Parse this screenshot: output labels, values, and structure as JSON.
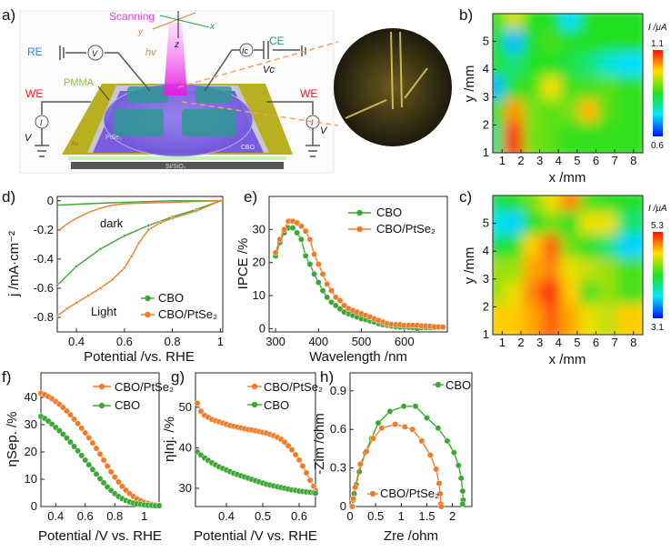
{
  "panels": {
    "a": "a)",
    "b": "b)",
    "c": "c)",
    "d": "d)",
    "e": "e)",
    "f": "f)",
    "g": "g)",
    "h": "h)"
  },
  "schematic": {
    "scanning": "Scanning",
    "axis_x": "x",
    "axis_y": "y",
    "axis_z": "z",
    "hv": "hv",
    "re": "RE",
    "v_meter": "V",
    "we_left": "WE",
    "we_right": "WE",
    "pmma": "PMMA",
    "i_left": "I",
    "v_left": "V",
    "i_right": "I",
    "v_right": "V",
    "ic": "Ic",
    "ce": "CE",
    "vc": "Vc",
    "ptse2": "PtSe₂",
    "au": "Au",
    "cbo": "CBO",
    "substrate": "Si/SiO₂",
    "colors": {
      "scanning": "#e040e0",
      "re": "#2a8ad8",
      "we": "#e02020",
      "ce": "#20a060",
      "pmma": "#90c040",
      "hv": "#e08030",
      "au": "#b8b020",
      "cbo_film": "#7b5ce0"
    }
  },
  "colors": {
    "cbo": "#3aa832",
    "ptse2": "#f07c28"
  },
  "chart_data": [
    {
      "id": "b",
      "type": "heatmap",
      "xlabel": "x /mm",
      "ylabel": "y /mm",
      "xticks": [
        1,
        2,
        3,
        4,
        5,
        6,
        7,
        8
      ],
      "yticks": [
        1,
        2,
        3,
        4,
        5
      ],
      "xlim": [
        0.5,
        8.5
      ],
      "ylim": [
        1,
        6
      ],
      "colorbar": {
        "label": "I /μA",
        "max": "1.1",
        "min": "0.6",
        "range": [
          0.6,
          1.1
        ]
      },
      "x": [
        1,
        2,
        3,
        4,
        5,
        6,
        7,
        8
      ],
      "y": [
        5.6,
        4.8,
        4,
        3,
        2,
        1.2
      ],
      "values": [
        [
          0.85,
          0.95,
          0.85,
          0.85,
          0.72,
          0.85,
          0.85,
          0.85
        ],
        [
          0.85,
          0.7,
          0.85,
          0.87,
          0.85,
          0.85,
          0.85,
          0.85
        ],
        [
          0.85,
          0.8,
          0.85,
          0.85,
          0.83,
          0.8,
          0.75,
          0.72
        ],
        [
          0.7,
          0.85,
          0.87,
          0.97,
          0.87,
          0.87,
          0.88,
          0.86
        ],
        [
          0.85,
          1.02,
          0.9,
          0.88,
          0.9,
          1.0,
          0.88,
          0.86
        ],
        [
          0.8,
          1.1,
          0.9,
          0.88,
          0.86,
          0.86,
          0.86,
          0.86
        ]
      ]
    },
    {
      "id": "c",
      "type": "heatmap",
      "xlabel": "x /mm",
      "ylabel": "y /mm",
      "xticks": [
        1,
        2,
        3,
        4,
        5,
        6,
        7,
        8
      ],
      "yticks": [
        1,
        2,
        3,
        4,
        5
      ],
      "xlim": [
        0.5,
        8.5
      ],
      "ylim": [
        1,
        6
      ],
      "colorbar": {
        "label": "I /μA",
        "max": "5.3",
        "min": "3.1",
        "range": [
          3.1,
          5.3
        ]
      },
      "x": [
        1,
        2,
        3,
        4,
        5,
        6,
        7,
        8
      ],
      "y": [
        5.6,
        4.8,
        4,
        3,
        2,
        1.2
      ],
      "values": [
        [
          4.1,
          4.2,
          4.4,
          4.7,
          5.0,
          4.3,
          4.2,
          4.2
        ],
        [
          3.7,
          3.6,
          4.2,
          4.4,
          4.2,
          4.7,
          4.7,
          4.0
        ],
        [
          4.1,
          4.2,
          4.8,
          5.1,
          4.4,
          4.2,
          4.0,
          3.6
        ],
        [
          4.5,
          4.5,
          4.9,
          5.0,
          4.7,
          4.6,
          4.5,
          4.3
        ],
        [
          4.5,
          4.7,
          5.0,
          5.3,
          4.8,
          4.3,
          4.5,
          4.3
        ],
        [
          4.8,
          4.8,
          4.9,
          5.1,
          4.9,
          4.7,
          4.6,
          4.8
        ]
      ]
    },
    {
      "id": "d",
      "type": "line",
      "xlabel": "Potential /vs. RHE",
      "ylabel": "j /mA·cm⁻²",
      "xlim": [
        0.32,
        1.01
      ],
      "ylim": [
        -0.9,
        0.03
      ],
      "xticks": [
        0.4,
        0.6,
        0.8,
        1
      ],
      "yticks": [
        0,
        -0.2,
        -0.4,
        -0.6,
        -0.8
      ],
      "annotations": {
        "dark": "dark",
        "light": "Light"
      },
      "series": [
        {
          "name": "CBO",
          "color": "cbo",
          "condition": "light",
          "x": [
            0.32,
            0.4,
            0.5,
            0.6,
            0.7,
            0.8,
            0.9,
            1.0
          ],
          "y": [
            -0.58,
            -0.45,
            -0.33,
            -0.24,
            -0.17,
            -0.11,
            -0.06,
            0.0
          ]
        },
        {
          "name": "CBO/PtSe₂",
          "color": "ptse2",
          "condition": "light",
          "x": [
            0.32,
            0.36,
            0.4,
            0.45,
            0.5,
            0.55,
            0.6,
            0.63,
            0.66,
            0.7,
            0.75,
            0.8,
            0.9,
            1.0
          ],
          "y": [
            -0.79,
            -0.74,
            -0.7,
            -0.65,
            -0.6,
            -0.54,
            -0.46,
            -0.38,
            -0.29,
            -0.2,
            -0.15,
            -0.12,
            -0.07,
            0.0
          ]
        },
        {
          "name": "CBO",
          "color": "cbo",
          "condition": "dark",
          "x": [
            0.32,
            0.45,
            0.6,
            0.8,
            1.0
          ],
          "y": [
            -0.03,
            -0.02,
            -0.01,
            0,
            0
          ]
        },
        {
          "name": "CBO/PtSe₂",
          "color": "ptse2",
          "condition": "dark",
          "x": [
            0.32,
            0.36,
            0.4,
            0.45,
            0.5,
            0.55,
            0.6,
            0.8,
            1.0
          ],
          "y": [
            -0.21,
            -0.16,
            -0.12,
            -0.08,
            -0.05,
            -0.03,
            -0.02,
            -0.01,
            0
          ]
        }
      ],
      "legend": [
        "CBO",
        "CBO/PtSe₂"
      ]
    },
    {
      "id": "e",
      "type": "line",
      "xlabel": "Wavelength /nm",
      "ylabel": "IPCE /%",
      "xlim": [
        285,
        700
      ],
      "ylim": [
        -1,
        40
      ],
      "xticks": [
        300,
        400,
        500,
        600
      ],
      "yticks": [
        0,
        10,
        20,
        30
      ],
      "x": [
        300,
        310,
        320,
        330,
        340,
        350,
        360,
        370,
        380,
        390,
        400,
        410,
        420,
        430,
        440,
        450,
        460,
        470,
        480,
        490,
        500,
        510,
        520,
        530,
        540,
        550,
        560,
        570,
        580,
        590,
        600,
        610,
        620,
        630,
        640,
        650,
        660,
        670,
        680,
        690
      ],
      "series": [
        {
          "name": "CBO",
          "color": "cbo",
          "y": [
            22,
            26,
            29,
            30.5,
            30.5,
            29,
            27,
            22,
            19.5,
            16.5,
            14,
            11.5,
            9.5,
            8,
            7,
            6,
            5,
            4.5,
            4,
            3.5,
            3,
            2.7,
            2.3,
            2,
            1.5,
            1.2,
            1,
            0.8,
            0.6,
            0.5,
            0.5,
            0.4,
            0.3,
            0,
            0.3,
            0.3,
            0.3,
            0.3,
            0.3,
            0.3
          ]
        },
        {
          "name": "CBO/PtSe₂",
          "color": "ptse2",
          "y": [
            23,
            27,
            30,
            32.5,
            32.5,
            32,
            31,
            29.5,
            27,
            22.5,
            19.5,
            16.5,
            13.5,
            11.5,
            9.5,
            8.5,
            7,
            6,
            5.5,
            5,
            4.5,
            4,
            3.5,
            3,
            2.5,
            2,
            1.5,
            1.3,
            1.2,
            1.2,
            1,
            1,
            1,
            1,
            0.8,
            0.8,
            0.7,
            0.6,
            0.5,
            0.5
          ]
        }
      ]
    },
    {
      "id": "f",
      "type": "line",
      "xlabel": "Potential /V vs. RHE",
      "ylabel": "ηSep. /%",
      "xlim": [
        0.3,
        1.1
      ],
      "ylim": [
        0,
        49
      ],
      "xticks": [
        0.4,
        0.6,
        0.8,
        1.0
      ],
      "yticks": [
        0,
        10,
        20,
        30,
        40
      ],
      "x": [
        0.3,
        0.325,
        0.35,
        0.375,
        0.4,
        0.425,
        0.45,
        0.475,
        0.5,
        0.525,
        0.55,
        0.575,
        0.6,
        0.625,
        0.65,
        0.675,
        0.7,
        0.725,
        0.75,
        0.775,
        0.8,
        0.825,
        0.85,
        0.875,
        0.9,
        0.925,
        0.95,
        0.975,
        1.0,
        1.025,
        1.05,
        1.075,
        1.1
      ],
      "series": [
        {
          "name": "CBO/PtSe₂",
          "color": "ptse2",
          "y": [
            41.5,
            41,
            40.3,
            39.5,
            38.5,
            37.5,
            36.3,
            35,
            33.6,
            32,
            30.4,
            28.7,
            27,
            25.2,
            23.3,
            21.3,
            19.2,
            17,
            14.8,
            12.7,
            10.8,
            9,
            7.4,
            6,
            4.8,
            3.7,
            2.8,
            2.1,
            1.5,
            1.1,
            0.8,
            0.6,
            0.5
          ]
        },
        {
          "name": "CBO",
          "color": "cbo",
          "y": [
            33,
            32.3,
            31.3,
            30.2,
            29,
            27.8,
            26.5,
            25.1,
            23.6,
            22,
            20.4,
            18.7,
            17,
            15.3,
            13.6,
            11.9,
            10.2,
            8.7,
            7.2,
            5.9,
            4.7,
            3.7,
            2.9,
            2.2,
            1.7,
            1.3,
            1,
            0.8,
            0.6,
            0.5,
            0.4,
            0.3,
            0.3
          ]
        }
      ]
    },
    {
      "id": "g",
      "type": "line",
      "xlabel": "Potential /V vs. RHE",
      "ylabel": "ηInj. /%",
      "xlim": [
        0.315,
        0.645
      ],
      "ylim": [
        25.5,
        58.5
      ],
      "xticks": [
        0.4,
        0.5,
        0.6
      ],
      "yticks": [
        30,
        40,
        50
      ],
      "x": [
        0.32,
        0.33,
        0.34,
        0.35,
        0.36,
        0.37,
        0.38,
        0.39,
        0.4,
        0.41,
        0.42,
        0.43,
        0.44,
        0.45,
        0.46,
        0.47,
        0.48,
        0.49,
        0.5,
        0.51,
        0.52,
        0.53,
        0.54,
        0.55,
        0.56,
        0.57,
        0.58,
        0.59,
        0.6,
        0.61,
        0.62,
        0.63,
        0.64,
        0.645
      ],
      "series": [
        {
          "name": "CBO/PtSe₂",
          "color": "ptse2",
          "y": [
            51,
            49,
            48,
            47.5,
            47,
            46.7,
            46.4,
            46.1,
            45.8,
            45.5,
            45.3,
            45.1,
            44.9,
            44.7,
            44.5,
            44.4,
            44.2,
            44,
            43.8,
            43.6,
            43.3,
            43,
            42.6,
            42.1,
            41.4,
            40.5,
            39.5,
            38.3,
            37,
            35.5,
            33.8,
            32,
            30.5,
            29.5
          ]
        },
        {
          "name": "CBO",
          "color": "cbo",
          "y": [
            39,
            38.2,
            37.5,
            36.9,
            36.3,
            35.8,
            35.3,
            34.9,
            34.5,
            34.1,
            33.7,
            33.4,
            33.1,
            32.8,
            32.5,
            32.2,
            31.9,
            31.6,
            31.3,
            31,
            30.8,
            30.6,
            30.4,
            30.2,
            30,
            29.8,
            29.6,
            29.5,
            29.3,
            29.2,
            29.1,
            29,
            28.9,
            28.8
          ]
        }
      ]
    },
    {
      "id": "h",
      "type": "scatter",
      "xlabel": "Zre /ohm",
      "ylabel": "-Zim /ohm",
      "xlim": [
        0,
        2.38
      ],
      "ylim": [
        0,
        1.04
      ],
      "xticks": [
        0,
        0.5,
        1,
        1.5,
        2
      ],
      "yticks": [
        0,
        0.3,
        0.6,
        0.9
      ],
      "series": [
        {
          "name": "CBO",
          "color": "cbo",
          "x": [
            0.05,
            0.06,
            0.08,
            0.12,
            0.18,
            0.3,
            0.42,
            0.55,
            0.78,
            1.05,
            1.28,
            1.5,
            1.72,
            1.9,
            2.03,
            2.12,
            2.17,
            2.2,
            2.21,
            2.2
          ],
          "y": [
            0,
            0.05,
            0.1,
            0.17,
            0.27,
            0.42,
            0.53,
            0.65,
            0.74,
            0.78,
            0.78,
            0.69,
            0.61,
            0.51,
            0.42,
            0.32,
            0.22,
            0.12,
            0.05,
            0.02
          ]
        },
        {
          "name": "CBO/PtSe₂",
          "color": "ptse2",
          "x": [
            0.04,
            0.06,
            0.1,
            0.2,
            0.32,
            0.45,
            0.62,
            0.88,
            1.07,
            1.22,
            1.4,
            1.57,
            1.68,
            1.74,
            1.76,
            1.77,
            1.78
          ],
          "y": [
            0,
            0.06,
            0.15,
            0.33,
            0.43,
            0.53,
            0.61,
            0.64,
            0.62,
            0.6,
            0.51,
            0.4,
            0.29,
            0.18,
            0.1,
            0.02,
            0
          ]
        }
      ]
    }
  ]
}
